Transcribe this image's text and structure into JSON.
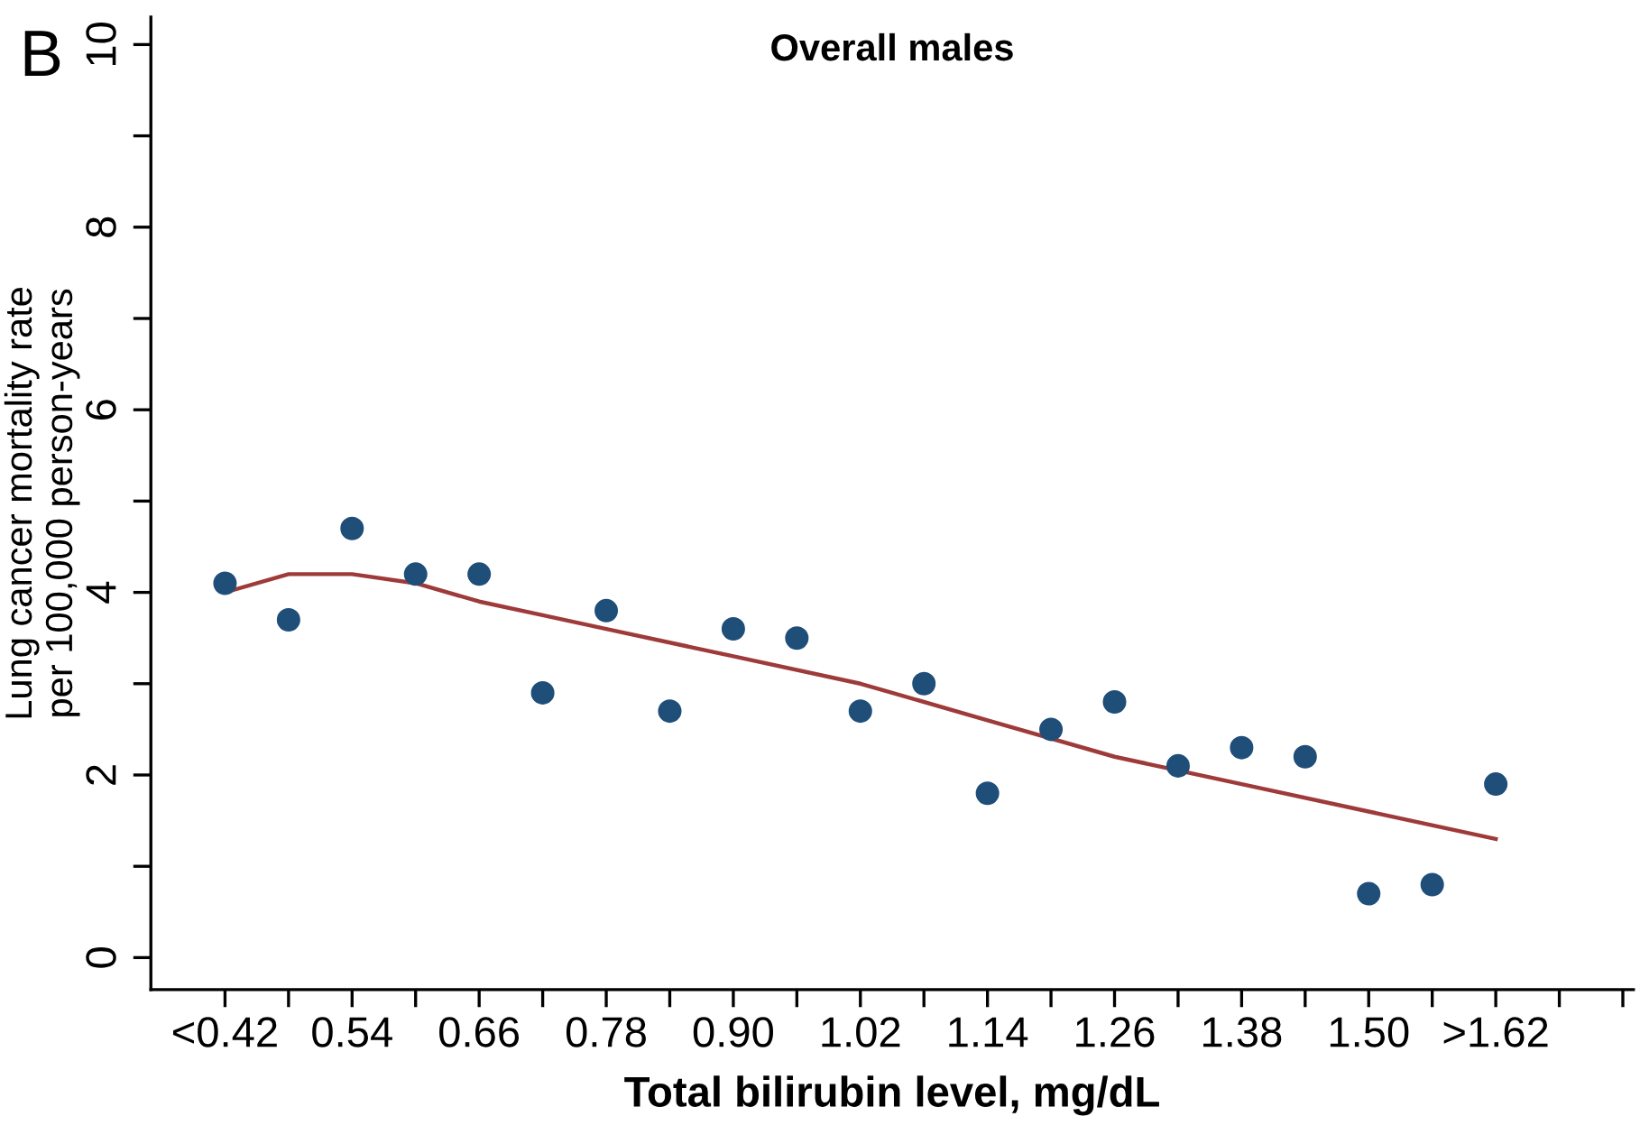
{
  "chart_data": {
    "type": "scatter",
    "title": "Overall males",
    "xlabel": "Total bilirubin level, mg/dL",
    "ylabel": "Lung cancer mortality rate\nper 100,000 person-years",
    "annotations": [
      "B"
    ],
    "series": [
      {
        "color": "#1f4e79",
        "marker": "circle",
        "x": [
          0.42,
          0.48,
          0.54,
          0.6,
          0.66,
          0.72,
          0.78,
          0.84,
          0.9,
          0.96,
          1.02,
          1.08,
          1.14,
          1.2,
          1.26,
          1.32,
          1.38,
          1.44,
          1.5,
          1.56,
          1.62
        ],
        "values": [
          4.1,
          3.7,
          4.7,
          4.2,
          4.2,
          2.9,
          3.8,
          2.7,
          3.6,
          3.5,
          2.7,
          3.0,
          1.8,
          2.5,
          2.8,
          2.1,
          2.3,
          2.2,
          0.7,
          0.8,
          1.9
        ]
      },
      {
        "type": "line",
        "color": "#9e3a3a",
        "marker": "none",
        "line_style": "solid",
        "x": [
          0.42,
          0.48,
          0.54,
          0.6,
          0.66,
          0.72,
          0.78,
          0.9,
          1.02,
          1.14,
          1.26,
          1.38,
          1.5,
          1.62
        ],
        "values": [
          4.0,
          4.2,
          4.2,
          4.1,
          3.9,
          3.75,
          3.6,
          3.3,
          3.0,
          2.6,
          2.2,
          1.9,
          1.6,
          1.3
        ]
      }
    ],
    "xlim": [
      0.35,
      1.75
    ],
    "xticks": [
      {
        "value": 0.42,
        "label": "<0.42"
      },
      {
        "value": 0.48,
        "label": null
      },
      {
        "value": 0.54,
        "label": "0.54"
      },
      {
        "value": 0.6,
        "label": null
      },
      {
        "value": 0.66,
        "label": "0.66"
      },
      {
        "value": 0.72,
        "label": null
      },
      {
        "value": 0.78,
        "label": "0.78"
      },
      {
        "value": 0.84,
        "label": null
      },
      {
        "value": 0.9,
        "label": "0.90"
      },
      {
        "value": 0.96,
        "label": null
      },
      {
        "value": 1.02,
        "label": "1.02"
      },
      {
        "value": 1.08,
        "label": null
      },
      {
        "value": 1.14,
        "label": "1.14"
      },
      {
        "value": 1.2,
        "label": null
      },
      {
        "value": 1.26,
        "label": "1.26"
      },
      {
        "value": 1.32,
        "label": null
      },
      {
        "value": 1.38,
        "label": "1.38"
      },
      {
        "value": 1.44,
        "label": null
      },
      {
        "value": 1.5,
        "label": "1.50"
      },
      {
        "value": 1.56,
        "label": null
      },
      {
        "value": 1.62,
        "label": ">1.62"
      },
      {
        "value": 1.68,
        "label": null
      },
      {
        "value": 1.74,
        "label": null
      }
    ],
    "ylim": [
      -0.35,
      10.3
    ],
    "yticks": [
      0,
      {
        "value": 1,
        "label": null
      },
      2,
      {
        "value": 3,
        "label": null
      },
      4,
      {
        "value": 5,
        "label": null
      },
      6,
      {
        "value": 7,
        "label": null
      },
      8,
      {
        "value": 9,
        "label": null
      },
      10
    ],
    "grid": false,
    "legend": false
  }
}
